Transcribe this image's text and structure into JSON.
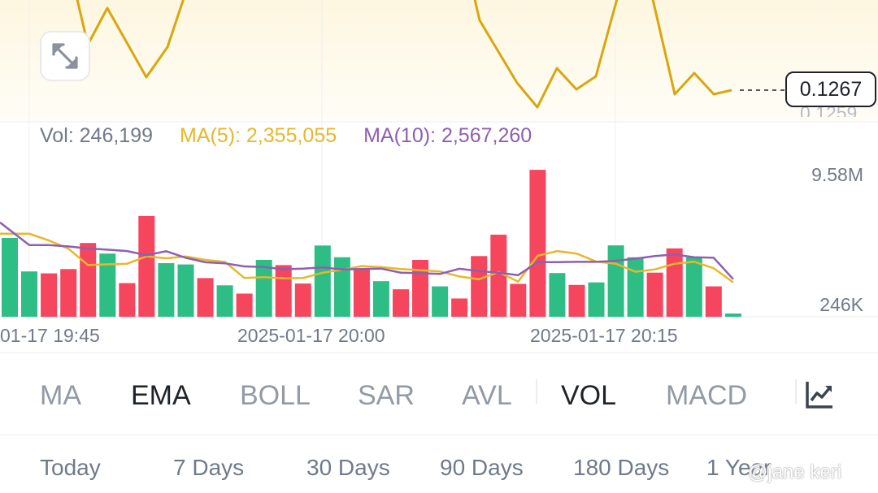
{
  "price_chart": {
    "current_price": "0.1267",
    "partial_axis_label": "0.1259",
    "line_color": "#d8a70f"
  },
  "volume_legend": {
    "vol": "Vol: 246,199",
    "ma5": "MA(5): 2,355,055",
    "ma10": "MA(10): 2,567,260",
    "vol_color": "#707a8a",
    "ma5_color": "#e6b82a",
    "ma10_color": "#8e5fb0"
  },
  "volume_axis": {
    "top": "9.58M",
    "bottom": "246K"
  },
  "time_axis": [
    "01-17 19:45",
    "2025-01-17 20:00",
    "2025-01-17 20:15"
  ],
  "indicator_tabs": [
    {
      "label": "MA",
      "active": false
    },
    {
      "label": "EMA",
      "active": true
    },
    {
      "label": "BOLL",
      "active": false
    },
    {
      "label": "SAR",
      "active": false
    },
    {
      "label": "AVL",
      "active": false
    },
    {
      "label": "VOL",
      "active": true
    },
    {
      "label": "MACD",
      "active": false
    }
  ],
  "settings_icon": "chart-settings-icon",
  "expand_icon": "expand-arrows-icon",
  "period_tabs": [
    "Today",
    "7 Days",
    "30 Days",
    "90 Days",
    "180 Days",
    "1 Year"
  ],
  "watermark": "@jane keri",
  "colors": {
    "up": "#2ebd85",
    "down": "#f6465d",
    "text_primary": "#1e2329",
    "text_secondary": "#707a8a"
  },
  "chart_data": {
    "type": "bar",
    "title": "",
    "ylim": [
      246000,
      9580000
    ],
    "volume_bars": [
      {
        "value": 5350000,
        "dir": "up"
      },
      {
        "value": 3090000,
        "dir": "up"
      },
      {
        "value": 2960000,
        "dir": "down"
      },
      {
        "value": 3250000,
        "dir": "down"
      },
      {
        "value": 5010000,
        "dir": "down"
      },
      {
        "value": 4300000,
        "dir": "up"
      },
      {
        "value": 2300000,
        "dir": "down"
      },
      {
        "value": 6840000,
        "dir": "down"
      },
      {
        "value": 3650000,
        "dir": "up"
      },
      {
        "value": 3560000,
        "dir": "up"
      },
      {
        "value": 2640000,
        "dir": "down"
      },
      {
        "value": 2150000,
        "dir": "up"
      },
      {
        "value": 1590000,
        "dir": "down"
      },
      {
        "value": 3870000,
        "dir": "up"
      },
      {
        "value": 3520000,
        "dir": "down"
      },
      {
        "value": 2270000,
        "dir": "down"
      },
      {
        "value": 4840000,
        "dir": "up"
      },
      {
        "value": 4050000,
        "dir": "up"
      },
      {
        "value": 3220000,
        "dir": "down"
      },
      {
        "value": 2430000,
        "dir": "up"
      },
      {
        "value": 1880000,
        "dir": "down"
      },
      {
        "value": 3870000,
        "dir": "down"
      },
      {
        "value": 2080000,
        "dir": "up"
      },
      {
        "value": 1260000,
        "dir": "down"
      },
      {
        "value": 4130000,
        "dir": "down"
      },
      {
        "value": 5580000,
        "dir": "down"
      },
      {
        "value": 2250000,
        "dir": "down"
      },
      {
        "value": 9960000,
        "dir": "down"
      },
      {
        "value": 2980000,
        "dir": "up"
      },
      {
        "value": 2180000,
        "dir": "down"
      },
      {
        "value": 2350000,
        "dir": "up"
      },
      {
        "value": 4850000,
        "dir": "up"
      },
      {
        "value": 4050000,
        "dir": "up"
      },
      {
        "value": 3010000,
        "dir": "down"
      },
      {
        "value": 4650000,
        "dir": "down"
      },
      {
        "value": 4040000,
        "dir": "up"
      },
      {
        "value": 2080000,
        "dir": "down"
      },
      {
        "value": 246199,
        "dir": "up"
      }
    ],
    "ma5": [
      5640000,
      5640000,
      5180000,
      4630000,
      3520000,
      3570000,
      3610000,
      4110000,
      3980000,
      4100000,
      3870000,
      3740000,
      2650000,
      2700000,
      2630000,
      2650000,
      3000000,
      3200000,
      3450000,
      3380000,
      3250000,
      3180000,
      3090000,
      2750000,
      2560000,
      3050000,
      2400000,
      4150000,
      4470000,
      4300000,
      3750000,
      3610000,
      3070000,
      3230000,
      3610000,
      3750000,
      3310000,
      2355055
    ],
    "ma10": [
      6400000,
      4870000,
      4870000,
      4780000,
      4640000,
      4560000,
      4470000,
      4190000,
      4460000,
      4010000,
      3710000,
      3640000,
      3430000,
      3390000,
      3240000,
      3280000,
      3360000,
      3230000,
      3250000,
      3280000,
      3010000,
      2970000,
      2920000,
      3270000,
      3120000,
      3000000,
      2840000,
      3720000,
      3720000,
      3740000,
      3740000,
      3810000,
      3950000,
      4130000,
      4240000,
      4050000,
      4020000,
      2567260
    ]
  }
}
